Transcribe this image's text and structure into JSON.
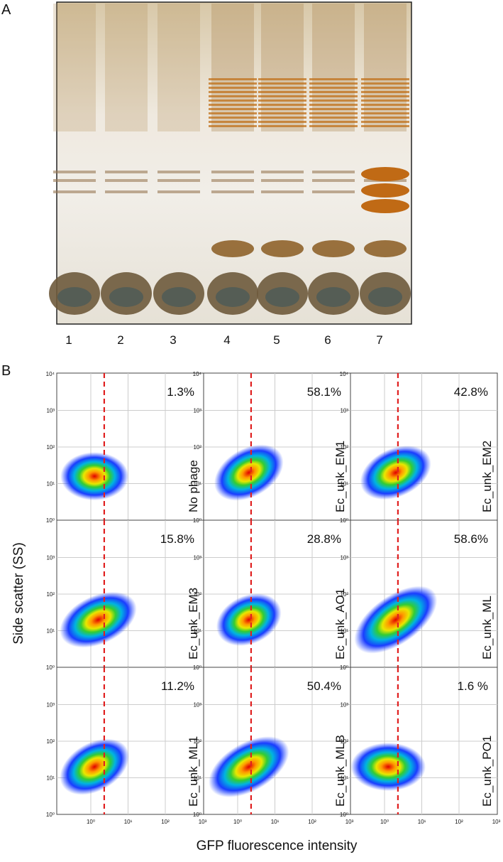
{
  "panel_a": {
    "label": "A",
    "lanes": [
      "1",
      "2",
      "3",
      "4",
      "5",
      "6",
      "7"
    ]
  },
  "panel_b": {
    "label": "B",
    "y_axis_label": "Side scatter  (SS)",
    "x_axis_label": "GFP fluorescence intensity",
    "tick_labels": [
      "10⁰",
      "10¹",
      "10²",
      "10³",
      "10⁴"
    ],
    "plots": [
      {
        "name": "No phage",
        "percent": "1.3%"
      },
      {
        "name": "Ec_unk_EM1",
        "percent": "58.1%"
      },
      {
        "name": "Ec_unk_EM2",
        "percent": "42.8%"
      },
      {
        "name": "Ec_unk_EM3",
        "percent": "15.8%"
      },
      {
        "name": "Ec_unk_AO1",
        "percent": "28.8%"
      },
      {
        "name": "Ec_unk_ML",
        "percent": "58.6%"
      },
      {
        "name": "Ec_unk_ML1",
        "percent": "11.2%"
      },
      {
        "name": "Ec_unk_MLB",
        "percent": "50.4%"
      },
      {
        "name": "Ec_unk_PO1",
        "percent": "1.6 %"
      }
    ]
  }
}
